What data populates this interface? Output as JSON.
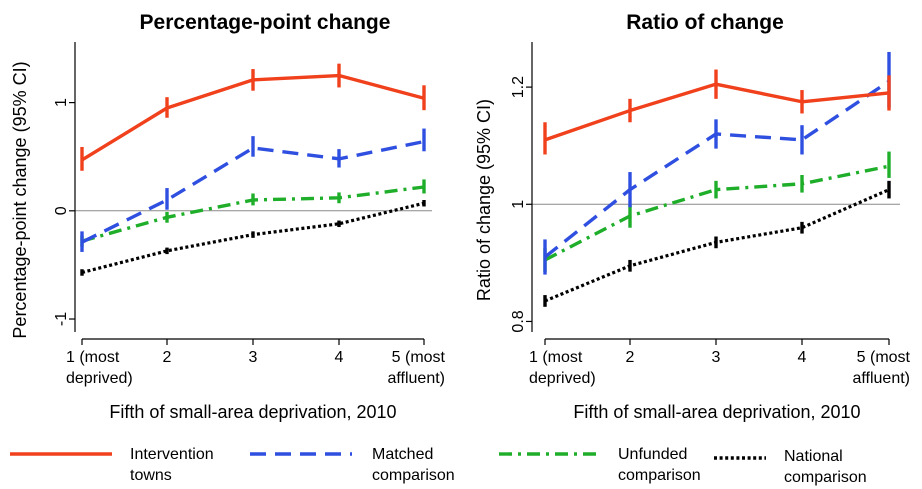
{
  "chart_data": [
    {
      "type": "line",
      "title": "Percentage-point change",
      "xlabel": "Fifth of small-area deprivation, 2010",
      "ylabel": "Percentage-point change (95% CI)",
      "categories": [
        "1 (most\ndeprived)",
        "2",
        "3",
        "4",
        "5 (most\naffluent)"
      ],
      "ylim": [
        -1.12,
        1.56
      ],
      "yticks": [
        -1,
        0,
        1
      ],
      "ytick_labels": [
        "-1",
        "0",
        "1"
      ],
      "reference_line": 0,
      "series": [
        {
          "name": "Intervention towns",
          "color": "#f0401c",
          "dash": "solid",
          "values": [
            0.47,
            0.95,
            1.21,
            1.25,
            1.04
          ],
          "ci": [
            [
              0.37,
              0.59
            ],
            [
              0.86,
              1.05
            ],
            [
              1.11,
              1.31
            ],
            [
              1.14,
              1.36
            ],
            [
              0.93,
              1.16
            ]
          ]
        },
        {
          "name": "Matched comparison",
          "color": "#2f4fe0",
          "dash": "dash",
          "values": [
            -0.29,
            0.1,
            0.58,
            0.48,
            0.64
          ],
          "ci": [
            [
              -0.38,
              -0.19
            ],
            [
              0.01,
              0.21
            ],
            [
              0.5,
              0.69
            ],
            [
              0.4,
              0.57
            ],
            [
              0.55,
              0.76
            ]
          ]
        },
        {
          "name": "Unfunded comparison",
          "color": "#1fae2a",
          "dash": "dashdot",
          "values": [
            -0.28,
            -0.06,
            0.1,
            0.12,
            0.22
          ],
          "ci": [
            [
              -0.33,
              -0.23
            ],
            [
              -0.11,
              -0.01
            ],
            [
              0.05,
              0.16
            ],
            [
              0.07,
              0.17
            ],
            [
              0.16,
              0.29
            ]
          ]
        },
        {
          "name": "National comparison",
          "color": "#000000",
          "dash": "dot",
          "values": [
            -0.57,
            -0.37,
            -0.22,
            -0.12,
            0.07
          ],
          "ci": [
            [
              -0.6,
              -0.54
            ],
            [
              -0.4,
              -0.34
            ],
            [
              -0.25,
              -0.19
            ],
            [
              -0.15,
              -0.09
            ],
            [
              0.04,
              0.1
            ]
          ]
        }
      ]
    },
    {
      "type": "line",
      "title": "Ratio of change",
      "xlabel": "Fifth of small-area deprivation, 2010",
      "ylabel": "Ratio of change (95% CI)",
      "categories": [
        "1 (most\ndeprived)",
        "2",
        "3",
        "4",
        "5 (most\naffluent)"
      ],
      "ylim": [
        0.782,
        1.277
      ],
      "yticks": [
        0.8,
        1,
        1.2
      ],
      "ytick_labels": [
        "0.8",
        "1",
        "1.2"
      ],
      "reference_line": 1,
      "series": [
        {
          "name": "Intervention towns",
          "color": "#f0401c",
          "dash": "solid",
          "values": [
            1.11,
            1.16,
            1.205,
            1.175,
            1.19
          ],
          "ci": [
            [
              1.085,
              1.14
            ],
            [
              1.14,
              1.18
            ],
            [
              1.18,
              1.23
            ],
            [
              1.155,
              1.195
            ],
            [
              1.16,
              1.22
            ]
          ]
        },
        {
          "name": "Matched comparison",
          "color": "#2f4fe0",
          "dash": "dash",
          "values": [
            0.91,
            1.025,
            1.12,
            1.11,
            1.21
          ],
          "ci": [
            [
              0.88,
              0.94
            ],
            [
              0.995,
              1.055
            ],
            [
              1.095,
              1.145
            ],
            [
              1.085,
              1.135
            ],
            [
              1.165,
              1.26
            ]
          ]
        },
        {
          "name": "Unfunded comparison",
          "color": "#1fae2a",
          "dash": "dashdot",
          "values": [
            0.905,
            0.98,
            1.025,
            1.035,
            1.065
          ],
          "ci": [
            [
              0.885,
              0.925
            ],
            [
              0.96,
              1.0
            ],
            [
              1.01,
              1.04
            ],
            [
              1.02,
              1.05
            ],
            [
              1.045,
              1.09
            ]
          ]
        },
        {
          "name": "National comparison",
          "color": "#000000",
          "dash": "dot",
          "values": [
            0.835,
            0.895,
            0.935,
            0.96,
            1.025
          ],
          "ci": [
            [
              0.825,
              0.845
            ],
            [
              0.885,
              0.905
            ],
            [
              0.925,
              0.945
            ],
            [
              0.95,
              0.97
            ],
            [
              1.01,
              1.04
            ]
          ]
        }
      ]
    }
  ],
  "legend": {
    "placement": "bottom",
    "items": [
      {
        "label_lines": [
          "Intervention",
          "towns"
        ],
        "color": "#f0401c",
        "dash": "solid"
      },
      {
        "label_lines": [
          "Matched",
          "comparison"
        ],
        "color": "#2f4fe0",
        "dash": "dash"
      },
      {
        "label_lines": [
          "Unfunded",
          "comparison"
        ],
        "color": "#1fae2a",
        "dash": "dashdot"
      },
      {
        "label_lines": [
          "National",
          "comparison"
        ],
        "color": "#000000",
        "dash": "dot"
      }
    ]
  }
}
